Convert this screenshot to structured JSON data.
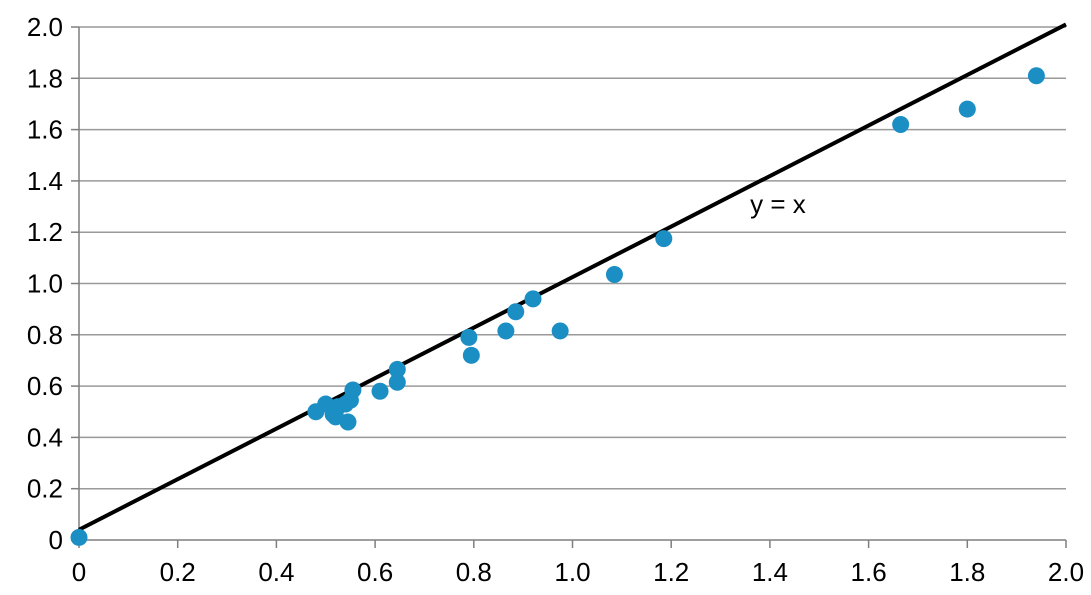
{
  "chart_data": {
    "type": "scatter",
    "title": "",
    "xlabel": "",
    "ylabel": "",
    "xlim": [
      0,
      2.0
    ],
    "ylim": [
      0,
      2.0
    ],
    "x_ticks": [
      "0",
      "0.2",
      "0.4",
      "0.6",
      "0.8",
      "1.0",
      "1.2",
      "1.4",
      "1.6",
      "1.8",
      "2.0"
    ],
    "y_ticks": [
      "0",
      "0.2",
      "0.4",
      "0.6",
      "0.8",
      "1.0",
      "1.2",
      "1.4",
      "1.6",
      "1.8",
      "2.0"
    ],
    "grid": {
      "horizontal": true,
      "vertical": false
    },
    "legend": "none",
    "series": [
      {
        "color": "#1b8ec4",
        "points": [
          {
            "x": 0.0,
            "y": 0.01
          },
          {
            "x": 0.48,
            "y": 0.5
          },
          {
            "x": 0.5,
            "y": 0.53
          },
          {
            "x": 0.515,
            "y": 0.49
          },
          {
            "x": 0.52,
            "y": 0.48
          },
          {
            "x": 0.525,
            "y": 0.52
          },
          {
            "x": 0.54,
            "y": 0.53
          },
          {
            "x": 0.545,
            "y": 0.46
          },
          {
            "x": 0.55,
            "y": 0.545
          },
          {
            "x": 0.555,
            "y": 0.585
          },
          {
            "x": 0.61,
            "y": 0.58
          },
          {
            "x": 0.645,
            "y": 0.665
          },
          {
            "x": 0.645,
            "y": 0.615
          },
          {
            "x": 0.79,
            "y": 0.79
          },
          {
            "x": 0.795,
            "y": 0.72
          },
          {
            "x": 0.865,
            "y": 0.815
          },
          {
            "x": 0.885,
            "y": 0.89
          },
          {
            "x": 0.92,
            "y": 0.94
          },
          {
            "x": 0.975,
            "y": 0.815
          },
          {
            "x": 1.085,
            "y": 1.035
          },
          {
            "x": 1.185,
            "y": 1.175
          },
          {
            "x": 1.665,
            "y": 1.62
          },
          {
            "x": 1.8,
            "y": 1.68
          },
          {
            "x": 1.94,
            "y": 1.81
          }
        ]
      }
    ],
    "reference_line": {
      "label": "y = x",
      "from": {
        "x": 0,
        "y": 0.04
      },
      "to": {
        "x": 2.0,
        "y": 2.01
      },
      "color": "#000000",
      "label_at": {
        "x": 1.36,
        "y": 1.31
      }
    },
    "colors": {
      "point": "#1b8ec4",
      "line": "#000000",
      "grid": "#999999",
      "axis": "#7f7f7f"
    }
  }
}
